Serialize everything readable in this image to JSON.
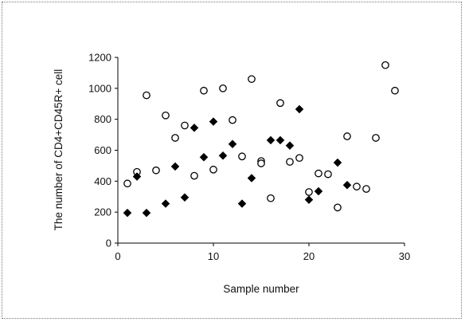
{
  "chart_data": {
    "type": "scatter",
    "xlabel": "Sample number",
    "ylabel": "The number of CD4+CD45R+ cell",
    "xlim": [
      0,
      30
    ],
    "ylim": [
      0,
      1200
    ],
    "x_ticks": [
      "0",
      "10",
      "20",
      "30"
    ],
    "y_ticks": [
      "0",
      "200",
      "400",
      "600",
      "800",
      "1000",
      "1200"
    ],
    "grid": false,
    "legend": "none",
    "series": [
      {
        "marker": "open-circle",
        "color": "#000000",
        "points": [
          [
            1,
            385
          ],
          [
            2,
            460
          ],
          [
            3,
            955
          ],
          [
            4,
            470
          ],
          [
            5,
            825
          ],
          [
            6,
            680
          ],
          [
            7,
            760
          ],
          [
            8,
            435
          ],
          [
            9,
            985
          ],
          [
            10,
            475
          ],
          [
            11,
            1000
          ],
          [
            12,
            795
          ],
          [
            13,
            560
          ],
          [
            14,
            1060
          ],
          [
            15,
            530
          ],
          [
            15,
            515
          ],
          [
            16,
            290
          ],
          [
            17,
            905
          ],
          [
            18,
            525
          ],
          [
            19,
            550
          ],
          [
            20,
            330
          ],
          [
            21,
            450
          ],
          [
            22,
            445
          ],
          [
            23,
            230
          ],
          [
            24,
            690
          ],
          [
            25,
            365
          ],
          [
            26,
            350
          ],
          [
            27,
            680
          ],
          [
            28,
            1150
          ],
          [
            29,
            985
          ]
        ]
      },
      {
        "marker": "filled-diamond",
        "color": "#000000",
        "points": [
          [
            1,
            195
          ],
          [
            2,
            430
          ],
          [
            3,
            195
          ],
          [
            5,
            255
          ],
          [
            6,
            495
          ],
          [
            7,
            295
          ],
          [
            8,
            745
          ],
          [
            9,
            555
          ],
          [
            10,
            785
          ],
          [
            11,
            565
          ],
          [
            12,
            640
          ],
          [
            13,
            255
          ],
          [
            14,
            420
          ],
          [
            16,
            665
          ],
          [
            17,
            665
          ],
          [
            18,
            630
          ],
          [
            19,
            865
          ],
          [
            20,
            280
          ],
          [
            21,
            335
          ],
          [
            23,
            520
          ],
          [
            24,
            375
          ]
        ]
      }
    ]
  }
}
